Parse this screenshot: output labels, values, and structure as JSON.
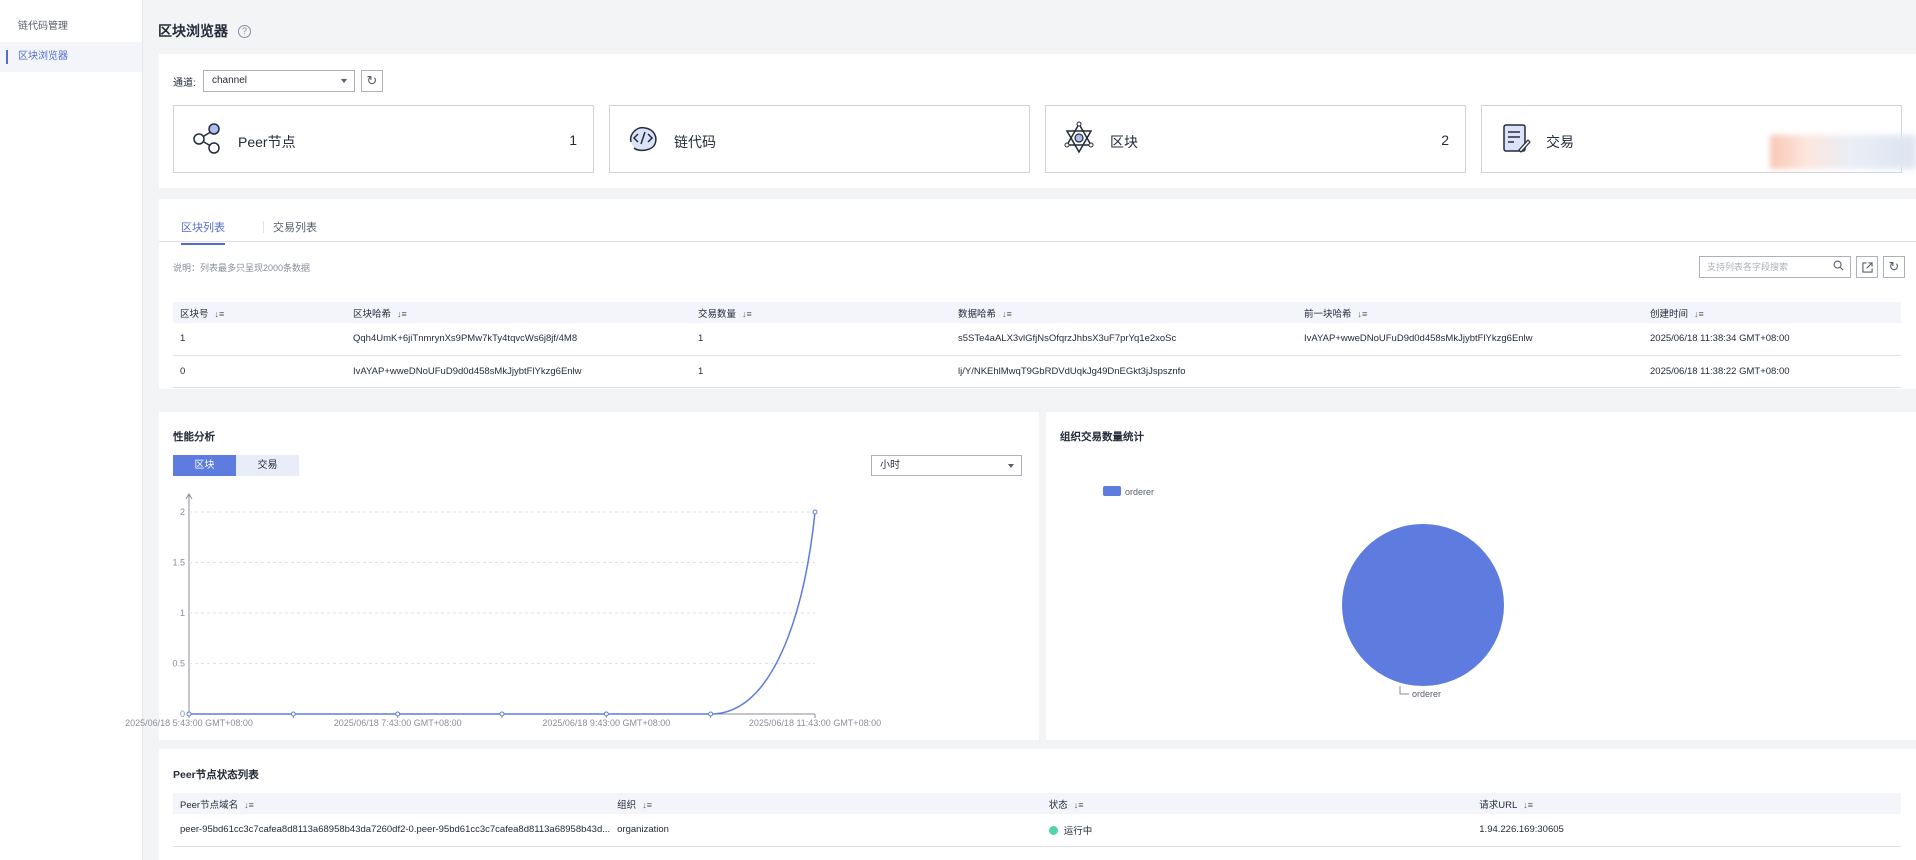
{
  "sidebar": {
    "items": [
      {
        "label": "链代码管理"
      },
      {
        "label": "区块浏览器"
      }
    ]
  },
  "page": {
    "title": "区块浏览器",
    "help_icon": "?"
  },
  "channel": {
    "label": "通道:",
    "selected": "channel"
  },
  "stats": [
    {
      "label": "Peer节点",
      "count": "1",
      "icon": "share-nodes-icon"
    },
    {
      "label": "链代码",
      "count": "",
      "icon": "code-icon"
    },
    {
      "label": "区块",
      "count": "2",
      "icon": "hexagram-icon"
    },
    {
      "label": "交易",
      "count": "",
      "icon": "document-edit-icon"
    }
  ],
  "tabs": [
    {
      "label": "区块列表"
    },
    {
      "label": "交易列表"
    }
  ],
  "note": "说明：列表最多只呈现2000条数据",
  "search": {
    "placeholder": "支持列表各字段搜索"
  },
  "blocks_table": {
    "headers": [
      "区块号",
      "区块哈希",
      "交易数量",
      "数据哈希",
      "前一块哈希",
      "创建时间"
    ],
    "rows": [
      [
        "1",
        "Qqh4UmK+6jiTnmrynXs9PMw7kTy4tqvcWs6j8jf/4M8",
        "1",
        "s5STe4aALX3vlGfjNsOfqrzJhbsX3uF7prYq1e2xoSc",
        "IvAYAP+wweDNoUFuD9d0d458sMkJjybtFlYkzg6Enlw",
        "2025/06/18 11:38:34 GMT+08:00"
      ],
      [
        "0",
        "IvAYAP+wweDNoUFuD9d0d458sMkJjybtFlYkzg6Enlw",
        "1",
        "lj/Y/NKEhlMwqT9GbRDVdUqkJg49DnEGkt3jJspsznfo",
        "",
        "2025/06/18 11:38:22 GMT+08:00"
      ]
    ]
  },
  "perf": {
    "title": "性能分析",
    "segments": [
      {
        "label": "区块"
      },
      {
        "label": "交易"
      }
    ],
    "granularity": "小时"
  },
  "org_stats": {
    "title": "组织交易数量统计"
  },
  "chart_data": [
    {
      "type": "line",
      "x": [
        "2025/06/18 5:43:00  GMT+08:00",
        "2025/06/18 6:43:00  GMT+08:00",
        "2025/06/18 7:43:00  GMT+08:00",
        "2025/06/18 8:43:00  GMT+08:00",
        "2025/06/18 9:43:00  GMT+08:00",
        "2025/06/18 10:43:00  GMT+08:00",
        "2025/06/18 11:43:00  GMT+08:00"
      ],
      "x_tick_labels": [
        "2025/06/18 5:43:00  GMT+08:00",
        "2025/06/18 7:43:00  GMT+08:00",
        "2025/06/18 9:43:00  GMT+08:00",
        "2025/06/18 11:43:00  GMT+08:00"
      ],
      "series": [
        {
          "values": [
            0,
            0,
            0,
            0,
            0,
            0,
            2
          ]
        }
      ],
      "y_ticks": [
        "0",
        "0.5",
        "1",
        "1.5",
        "2"
      ],
      "ylim": [
        0,
        2
      ],
      "grid": true,
      "color": "#5e7ce0"
    },
    {
      "type": "pie",
      "labels": [
        "orderer"
      ],
      "values": [
        1
      ],
      "legend": "top-left",
      "color": "#5e7ce0"
    }
  ],
  "peer_table": {
    "title": "Peer节点状态列表",
    "headers": [
      "Peer节点域名",
      "组织",
      "状态",
      "请求URL"
    ],
    "rows": [
      [
        "peer-95bd61cc3c7cafea8d8113a68958b43da7260df2-0.peer-95bd61cc3c7cafea8d8113a68958b43d...",
        "organization",
        "运行中",
        "1.94.226.169:30605"
      ]
    ]
  }
}
